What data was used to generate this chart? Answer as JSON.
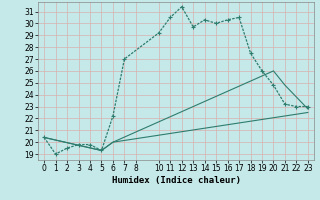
{
  "xlabel": "Humidex (Indice chaleur)",
  "bg_color": "#c5e8e8",
  "grid_color": "#e0e0e0",
  "line_color": "#2e7d6e",
  "xlim": [
    -0.5,
    23.5
  ],
  "ylim": [
    18.5,
    31.8
  ],
  "xticks": [
    0,
    1,
    2,
    3,
    4,
    5,
    6,
    7,
    8,
    10,
    11,
    12,
    13,
    14,
    15,
    16,
    17,
    18,
    19,
    20,
    21,
    22,
    23
  ],
  "yticks": [
    19,
    20,
    21,
    22,
    23,
    24,
    25,
    26,
    27,
    28,
    29,
    30,
    31
  ],
  "line1_x": [
    0,
    1,
    2,
    3,
    4,
    5,
    6,
    7,
    10,
    11,
    12,
    13,
    14,
    15,
    16,
    17,
    18,
    19,
    20,
    21,
    22,
    23
  ],
  "line1_y": [
    20.4,
    19.0,
    19.5,
    19.8,
    19.8,
    19.3,
    22.2,
    27.0,
    29.2,
    30.5,
    31.4,
    29.7,
    30.3,
    30.0,
    30.3,
    30.5,
    27.5,
    26.0,
    24.8,
    23.2,
    23.0,
    23.0
  ],
  "line2_x": [
    0,
    5,
    6,
    20,
    21,
    23
  ],
  "line2_y": [
    20.4,
    19.3,
    20.0,
    26.0,
    24.8,
    22.8
  ],
  "line3_x": [
    0,
    5,
    6,
    23
  ],
  "line3_y": [
    20.4,
    19.3,
    20.0,
    22.5
  ],
  "xlabel_fontsize": 6.5,
  "tick_fontsize": 5.5
}
